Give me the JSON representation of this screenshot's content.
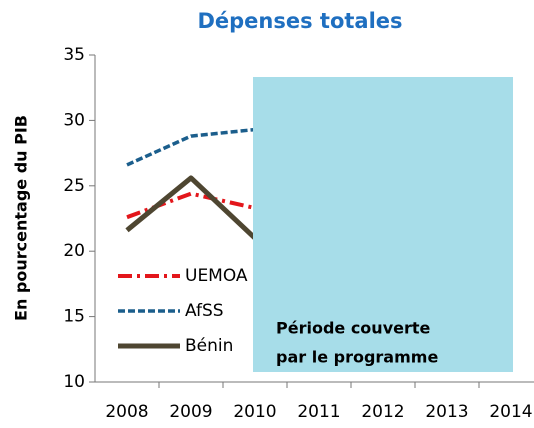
{
  "chart_data": {
    "type": "line",
    "title": "Dépenses totales",
    "y_label": "En pourcentage  du  PIB",
    "categories": [
      "2008",
      "2009",
      "2010",
      "2011",
      "2012",
      "2013",
      "2014"
    ],
    "series": [
      {
        "name": "UEMOA",
        "color": "#e3161b",
        "values": [
          22.6,
          24.4,
          23.3,
          null,
          null,
          null,
          null
        ]
      },
      {
        "name": "AfSS",
        "color": "#1b5e8c",
        "values": [
          26.6,
          28.8,
          29.3,
          null,
          null,
          null,
          null
        ]
      },
      {
        "name": "Bénin",
        "color": "#4e4631",
        "values": [
          21.6,
          25.6,
          21.0,
          null,
          null,
          null,
          null
        ]
      }
    ],
    "annotation": [
      "Période  couverte",
      "par le programme"
    ],
    "ylim": [
      10,
      35
    ],
    "yticks": [
      10,
      15,
      20,
      25,
      30,
      35
    ],
    "legend": "left"
  }
}
